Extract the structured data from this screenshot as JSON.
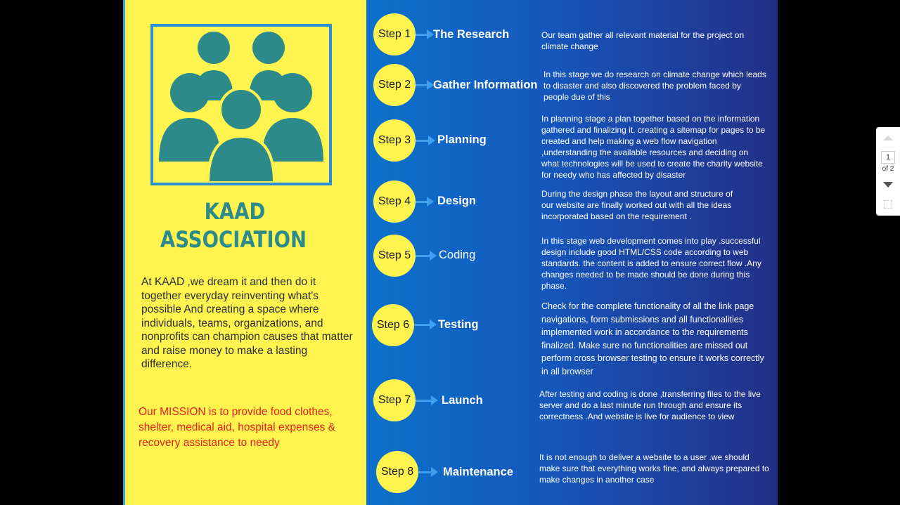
{
  "poster": {
    "title_line1": "KAAD",
    "title_line2": "ASSOCIATION",
    "about": "At KAAD ,we  dream it and then do it together everyday reinventing what's possible  And creating a space where individuals, teams, organizations, and nonprofits can champion causes that matter and raise money to make a lasting difference.",
    "mission": "Our MISSION is to   provide  food clothes, shelter, medical aid, hospital expenses & recovery assistance to needy",
    "logo_icon": "people-group-icon"
  },
  "steps": [
    {
      "label": "Step 1",
      "name": "The Research",
      "desc": "Our team gather all relevant material for the project on climate change"
    },
    {
      "label": "Step 2",
      "name": "Gather Information",
      "desc": "In this stage we do research on climate change which leads to disaster and also discovered the problem faced by  people due of this"
    },
    {
      "label": "Step 3",
      "name": "Planning",
      "desc": "In planning stage a plan together based on the information gathered and finalizing it. creating a sitemap for pages to be created and help making a web flow navigation ,understanding the available resources and deciding on what technologies will be used to create the  charity website for needy who has affected by disaster"
    },
    {
      "label": "Step 4",
      "name": "Design",
      "desc": "During the design phase  the layout and structure of our website are finally worked out with  all the ideas incorporated based on the requirement  ."
    },
    {
      "label": "Step 5",
      "name": "Coding",
      "desc": "In this stage web development comes into play .successful design include good HTML/CSS code according to web standards. the content is added to ensure correct flow .Any changes  needed to be made should be done during this phase."
    },
    {
      "label": "Step 6",
      "name": "Testing",
      "desc": " Check for the complete functionality of  all the link page navigations, form submissions and all functionalities implemented  work in accordance  to the requirements finalized. Make sure no functionalities are missed out perform cross browser testing to ensure it works correctly in all browser"
    },
    {
      "label": "Step 7",
      "name": "Launch",
      "desc": "After testing and coding  is done ,transferring files to the live server and do a last minute run through and ensure its correctness .And website is live for audience to view"
    },
    {
      "label": "Step 8",
      "name": "Maintenance",
      "desc": "It is not enough to deliver a website to  a user .we should make sure that everything works fine, and always prepared to make changes in another case"
    }
  ],
  "viewer": {
    "current_page": "1",
    "of_pages": "of 2",
    "icons": [
      "chevron-up-icon",
      "chevron-down-icon",
      "fit-to-page-icon"
    ]
  },
  "colors": {
    "left_bg": "#fff44f",
    "accent_teal": "#2c8a8a",
    "mission_red": "#e8201d",
    "step_circle": "#fff44f",
    "arrow_blue": "#3ea0ee"
  }
}
